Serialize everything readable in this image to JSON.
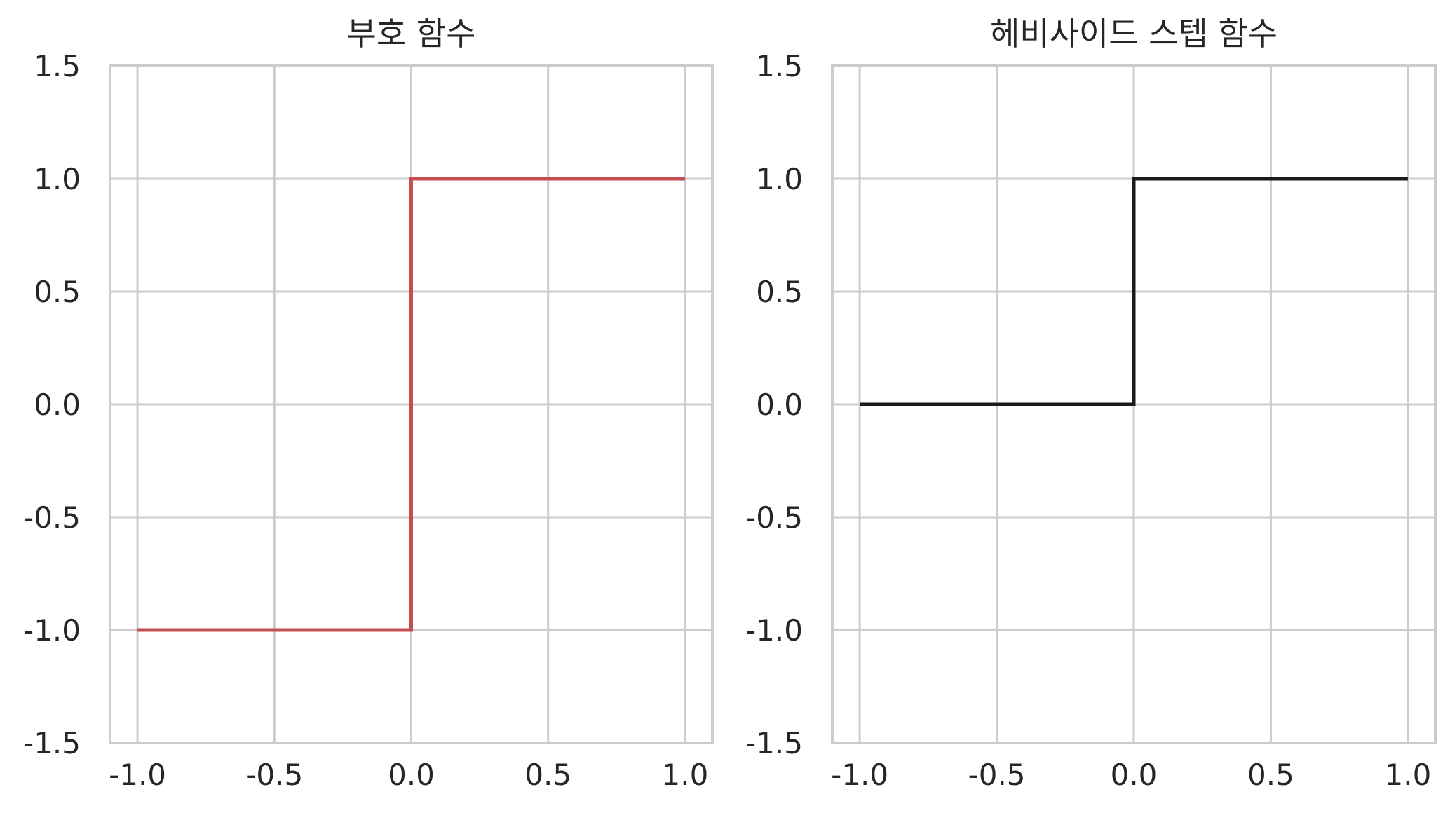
{
  "chart_data": [
    {
      "type": "line",
      "title": "부호 함수",
      "xlim": [
        -1.1,
        1.1
      ],
      "ylim": [
        -1.5,
        1.5
      ],
      "x_ticks": [
        -1.0,
        -0.5,
        0.0,
        0.5,
        1.0
      ],
      "x_tick_labels": [
        "-1.0",
        "-0.5",
        "0.0",
        "0.5",
        "1.0"
      ],
      "y_ticks": [
        -1.5,
        -1.0,
        -0.5,
        0.0,
        0.5,
        1.0,
        1.5
      ],
      "y_tick_labels": [
        "-1.5",
        "-1.0",
        "-0.5",
        "0.0",
        "0.5",
        "1.0",
        "1.5"
      ],
      "grid": true,
      "series": [
        {
          "color": "#c44e52",
          "x": [
            -1.0,
            0.0,
            0.0,
            1.0
          ],
          "y": [
            -1.0,
            -1.0,
            1.0,
            1.0
          ]
        }
      ]
    },
    {
      "type": "line",
      "title": "헤비사이드 스텝 함수",
      "xlim": [
        -1.1,
        1.1
      ],
      "ylim": [
        -1.5,
        1.5
      ],
      "x_ticks": [
        -1.0,
        -0.5,
        0.0,
        0.5,
        1.0
      ],
      "x_tick_labels": [
        "-1.0",
        "-0.5",
        "0.0",
        "0.5",
        "1.0"
      ],
      "y_ticks": [
        -1.5,
        -1.0,
        -0.5,
        0.0,
        0.5,
        1.0,
        1.5
      ],
      "y_tick_labels": [
        "-1.5",
        "-1.0",
        "-0.5",
        "0.0",
        "0.5",
        "1.0",
        "1.5"
      ],
      "grid": true,
      "series": [
        {
          "color": "#1a1a1a",
          "x": [
            -1.0,
            0.0,
            0.0,
            1.0
          ],
          "y": [
            0.0,
            0.0,
            1.0,
            1.0
          ]
        }
      ]
    }
  ]
}
